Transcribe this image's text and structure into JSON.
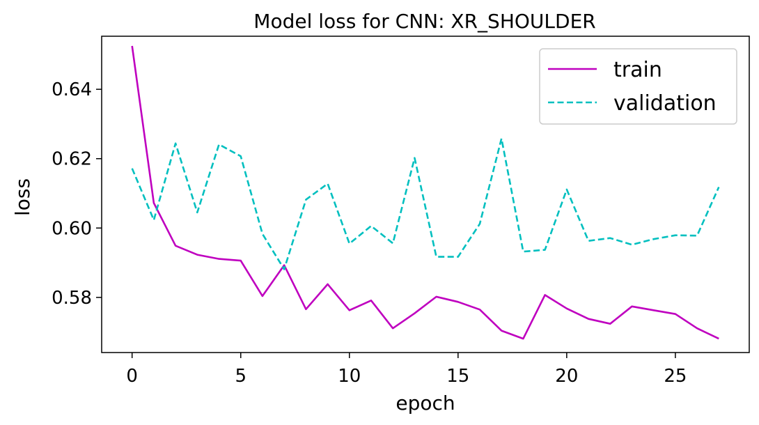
{
  "chart_data": {
    "type": "line",
    "title": "Model loss for CNN: XR_SHOULDER",
    "xlabel": "epoch",
    "ylabel": "loss",
    "xlim": [
      -1.4,
      28.4
    ],
    "ylim": [
      0.5641,
      0.6553
    ],
    "xticks": [
      0,
      5,
      10,
      15,
      20,
      25
    ],
    "yticks": [
      0.58,
      0.6,
      0.62,
      0.64
    ],
    "xtick_labels": [
      "0",
      "5",
      "10",
      "15",
      "20",
      "25"
    ],
    "ytick_labels": [
      "0.58",
      "0.60",
      "0.62",
      "0.64"
    ],
    "grid": false,
    "legend_position": "top-right",
    "x": [
      0,
      1,
      2,
      3,
      4,
      5,
      6,
      7,
      8,
      9,
      10,
      11,
      12,
      13,
      14,
      15,
      16,
      17,
      18,
      19,
      20,
      21,
      22,
      23,
      24,
      25,
      26,
      27
    ],
    "series": [
      {
        "name": "train",
        "color": "#bf00bf",
        "style": "solid",
        "values": [
          0.6525,
          0.6072,
          0.5949,
          0.5923,
          0.5911,
          0.5906,
          0.5804,
          0.5893,
          0.5766,
          0.5838,
          0.5763,
          0.5791,
          0.5711,
          0.5754,
          0.5802,
          0.5787,
          0.5765,
          0.5704,
          0.5681,
          0.5807,
          0.5768,
          0.5738,
          0.5724,
          0.5774,
          0.5763,
          0.5752,
          0.5711,
          0.5681
        ]
      },
      {
        "name": "validation",
        "color": "#00bfbf",
        "style": "dashed",
        "values": [
          0.6172,
          0.6023,
          0.6244,
          0.6045,
          0.6241,
          0.6207,
          0.5983,
          0.5881,
          0.6082,
          0.6128,
          0.5955,
          0.6006,
          0.5956,
          0.6202,
          0.5917,
          0.5917,
          0.6012,
          0.6258,
          0.5932,
          0.5937,
          0.6111,
          0.5963,
          0.5971,
          0.5952,
          0.5968,
          0.5979,
          0.5978,
          0.6118
        ]
      }
    ]
  }
}
